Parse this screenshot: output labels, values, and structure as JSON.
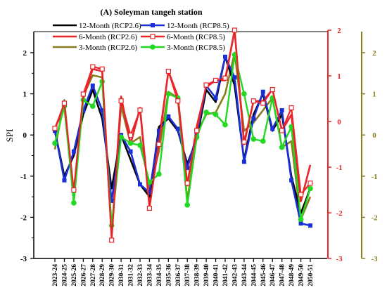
{
  "chart_data": {
    "type": "line",
    "title": "(A) Soleyman tangeh station",
    "ylabel": "SPI",
    "categories": [
      "2023-24",
      "2024-25",
      "2025-26",
      "2026-27",
      "2027-28",
      "2028-29",
      "2029-30",
      "2030-31",
      "2031-32",
      "2032-33",
      "2033-34",
      "2034-35",
      "2035-36",
      "2036-37",
      "2037-38",
      "2038-39",
      "2039-40",
      "2040-41",
      "2041-42",
      "2042-43",
      "2043-44",
      "2044-45",
      "2045-46",
      "2046-47",
      "2047-48",
      "2048-49",
      "2049-50",
      "2050-51"
    ],
    "axes": {
      "left": {
        "ylim": [
          -3,
          2.5
        ],
        "ticks": [
          -3,
          -2,
          -1,
          0,
          1,
          2
        ],
        "color": "#000000"
      },
      "right1": {
        "ylim": [
          -3,
          2
        ],
        "ticks": [
          -3,
          -2,
          -1,
          0,
          1,
          2
        ],
        "color": "#e8262a"
      },
      "right2": {
        "ylim": [
          -3,
          2.5
        ],
        "ticks": [
          -3,
          -2,
          -1,
          0,
          1,
          2
        ],
        "color": "#8a7d1f"
      }
    },
    "legend_placement": "top-center",
    "series": [
      {
        "name": "12-Month (RCP2.6)",
        "axis": "left",
        "color": "#000000",
        "marker": "none",
        "values": [
          0.1,
          -1.0,
          -0.5,
          0.5,
          1.1,
          0.4,
          -1.3,
          0.0,
          -0.6,
          -1.2,
          -1.5,
          0.2,
          0.4,
          0.1,
          -0.7,
          -0.1,
          1.1,
          0.8,
          1.9,
          1.2,
          -0.6,
          0.5,
          1.0,
          0.1,
          0.5,
          -1.0,
          -1.9,
          -1.3
        ]
      },
      {
        "name": "12-Month (RCP8.5)",
        "axis": "left",
        "color": "#1a2fd6",
        "marker": "square",
        "values": [
          0.1,
          -1.1,
          -0.4,
          0.6,
          1.2,
          0.6,
          -1.6,
          0.0,
          -0.4,
          -1.2,
          -1.4,
          0.1,
          0.45,
          0.15,
          -0.8,
          0.0,
          1.2,
          0.9,
          1.9,
          1.4,
          -0.65,
          0.4,
          1.05,
          0.15,
          0.6,
          -1.1,
          -2.15,
          -2.2
        ]
      },
      {
        "name": "6-Month (RCP2.6)",
        "axis": "right1",
        "color": "#e8262a",
        "marker": "none",
        "values": [
          -0.15,
          0.3,
          -1.6,
          0.5,
          1.15,
          1.1,
          -2.5,
          0.55,
          -0.5,
          0.3,
          -1.85,
          -0.4,
          1.1,
          0.55,
          -1.4,
          -0.1,
          0.75,
          0.9,
          0.9,
          2.0,
          -0.5,
          0.45,
          0.45,
          0.7,
          -0.2,
          0.15,
          -1.75,
          -0.95
        ]
      },
      {
        "name": "6-Month (RCP8.5)",
        "axis": "right1",
        "color": "#e8262a",
        "marker": "open-square",
        "values": [
          -0.15,
          0.4,
          -1.5,
          0.6,
          1.2,
          1.15,
          -2.6,
          0.45,
          -0.3,
          0.25,
          -1.9,
          -0.5,
          1.1,
          0.45,
          -1.35,
          -0.2,
          0.8,
          0.9,
          0.95,
          2.0,
          -0.45,
          0.45,
          0.4,
          0.7,
          -0.2,
          0.3,
          -1.6,
          -1.35
        ]
      },
      {
        "name": "3-Month (RCP2.6)",
        "axis": "right2",
        "color": "#8a7d1f",
        "marker": "none",
        "values": [
          -0.35,
          0.85,
          -1.6,
          0.95,
          1.45,
          1.4,
          -2.4,
          0.7,
          -0.2,
          -0.05,
          -1.3,
          -0.4,
          1.05,
          0.9,
          -1.6,
          0.05,
          0.5,
          0.55,
          1.0,
          2.0,
          0.1,
          0.3,
          0.6,
          0.9,
          -0.3,
          -0.15,
          -2.05,
          -1.5
        ]
      },
      {
        "name": "3-Month (RCP8.5)",
        "axis": "right2",
        "color": "#22d822",
        "marker": "circle",
        "values": [
          -0.2,
          0.7,
          -1.65,
          0.85,
          0.7,
          1.3,
          -2.2,
          -0.05,
          -0.2,
          -0.25,
          -1.15,
          -0.95,
          1.0,
          0.9,
          -1.7,
          -0.05,
          0.55,
          0.5,
          0.25,
          1.95,
          1.0,
          -0.1,
          -0.15,
          0.9,
          -0.3,
          0.2,
          -2.05,
          -1.3
        ]
      }
    ]
  }
}
